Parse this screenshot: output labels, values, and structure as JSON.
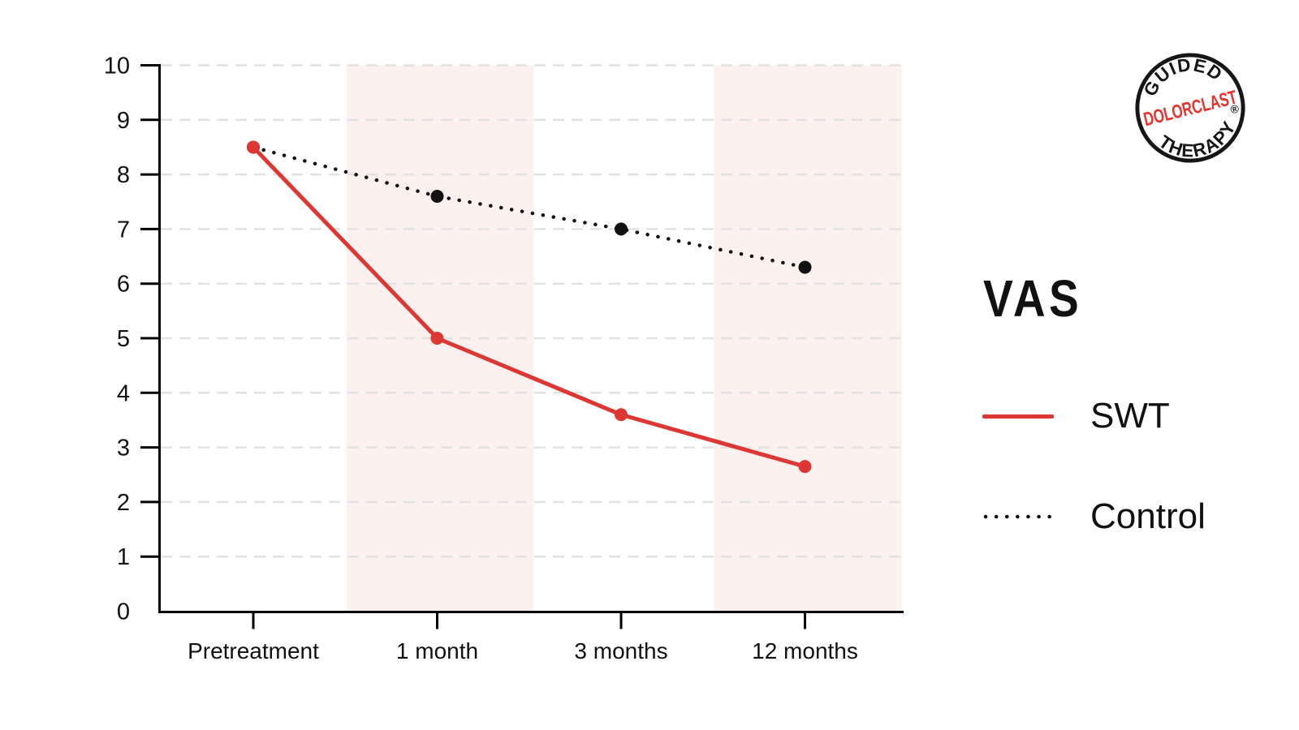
{
  "colors": {
    "swt_red": "#dc3732",
    "control_black": "#111111",
    "band_pink": "#fcf1ee",
    "grid_gray": "#e2e2e2",
    "axis_black": "#000000",
    "logo_red": "#e8322c",
    "logo_black": "#161616"
  },
  "legend": {
    "title": "VAS",
    "items": [
      {
        "label": "SWT",
        "style": "solid",
        "color": "#dc3732"
      },
      {
        "label": "Control",
        "style": "dotted",
        "color": "#111111"
      }
    ]
  },
  "logo": {
    "top_text": "GUIDED",
    "middle_text": "DOLORCLAST",
    "bottom_text": "THERAPY",
    "registered_mark": "®"
  },
  "chart_data": {
    "type": "line",
    "title": "",
    "xlabel": "",
    "ylabel": "VAS",
    "categories": [
      "Pretreatment",
      "1 month",
      "3 months",
      "12 months"
    ],
    "series": [
      {
        "name": "SWT",
        "style": "solid",
        "color": "#dc3732",
        "values": [
          8.5,
          5.0,
          3.6,
          2.65
        ]
      },
      {
        "name": "Control",
        "style": "dotted",
        "color": "#111111",
        "values": [
          8.5,
          7.6,
          7.0,
          6.3
        ]
      }
    ],
    "ylim": [
      0,
      10
    ],
    "y_ticks": [
      0,
      1,
      2,
      3,
      4,
      5,
      6,
      7,
      8,
      9,
      10
    ],
    "grid": "horizontal-dashed",
    "highlight_bands": [
      "1 month",
      "12 months"
    ],
    "legend_position": "right"
  }
}
